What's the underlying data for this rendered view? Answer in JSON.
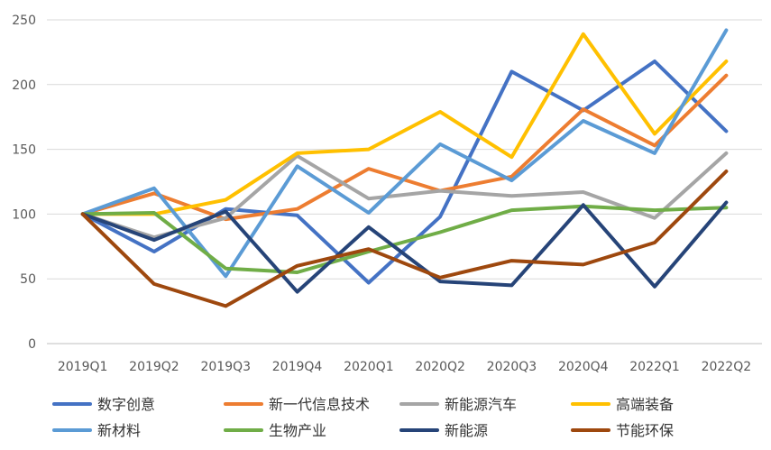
{
  "chart_data": {
    "type": "line",
    "title": "",
    "xlabel": "",
    "ylabel": "",
    "categories": [
      "2019Q1",
      "2019Q2",
      "2019Q3",
      "2019Q4",
      "2020Q1",
      "2020Q2",
      "2020Q3",
      "2020Q4",
      "2022Q1",
      "2022Q2"
    ],
    "ylim": [
      0,
      250
    ],
    "yticks": [
      0,
      50,
      100,
      150,
      200,
      250
    ],
    "grid": true,
    "legend_position": "bottom",
    "series": [
      {
        "name": "数字创意",
        "color": "#4472C4",
        "values": [
          100,
          71,
          104,
          99,
          47,
          98,
          210,
          180,
          218,
          164
        ]
      },
      {
        "name": "新一代信息技术",
        "color": "#ED7D31",
        "values": [
          100,
          116,
          96,
          104,
          135,
          118,
          129,
          181,
          153,
          207
        ]
      },
      {
        "name": "新能源汽车",
        "color": "#A5A5A5",
        "values": [
          100,
          82,
          97,
          145,
          112,
          118,
          114,
          117,
          97,
          147
        ]
      },
      {
        "name": "高端装备",
        "color": "#FFC000",
        "values": [
          100,
          100,
          111,
          147,
          150,
          179,
          144,
          239,
          162,
          218
        ]
      },
      {
        "name": "新材料",
        "color": "#5B9BD5",
        "values": [
          100,
          120,
          52,
          137,
          101,
          154,
          126,
          172,
          147,
          242
        ]
      },
      {
        "name": "生物产业",
        "color": "#70AD47",
        "values": [
          100,
          101,
          58,
          55,
          71,
          86,
          103,
          106,
          103,
          105
        ]
      },
      {
        "name": "新能源",
        "color": "#264478",
        "values": [
          100,
          80,
          102,
          40,
          90,
          48,
          45,
          107,
          44,
          109
        ]
      },
      {
        "name": "节能环保",
        "color": "#9E480E",
        "values": [
          100,
          46,
          29,
          60,
          73,
          51,
          64,
          61,
          78,
          133
        ]
      }
    ]
  }
}
